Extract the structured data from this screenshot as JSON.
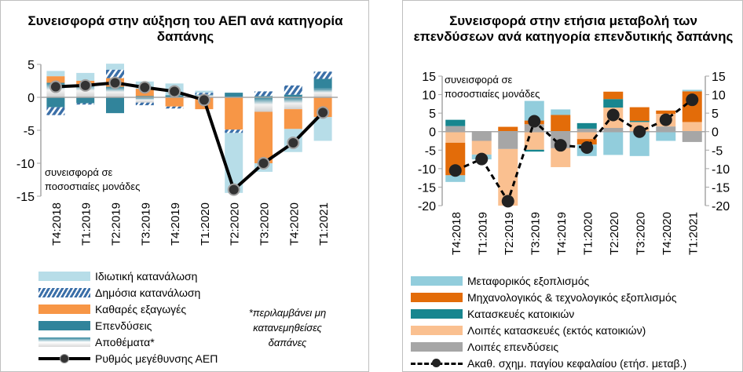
{
  "chart_data": [
    {
      "type": "bar",
      "stacked": true,
      "title": "Συνεισφορά στην αύξηση του ΑΕΠ ανά κατηγορία δαπάνης",
      "annotation": "συνεισφορά σε ποσοστιαίες μονάδες",
      "note": "*περιλαμβάνει μη κατανεμηθείσες δαπάνες",
      "ylim": [
        -15,
        5
      ],
      "yticks": [
        5,
        0,
        -5,
        -10,
        -15
      ],
      "categories": [
        "T4:2018",
        "T1:2019",
        "T2:2019",
        "T3:2019",
        "T4:2019",
        "T1:2020",
        "T2:2020",
        "T3:2020",
        "T4:2020",
        "T1:2021"
      ],
      "series": [
        {
          "name": "Ιδιωτική κατανάλωση",
          "color": "#b7dde8",
          "values": [
            0.8,
            1.2,
            0.9,
            1.1,
            1.8,
            0.3,
            -9.1,
            -1.3,
            -3.5,
            -3.6
          ]
        },
        {
          "name": "Δημόσια κατανάλωση",
          "color": "#3b6fa8",
          "pattern": "hatched",
          "values": [
            -1.2,
            -0.2,
            1.3,
            -0.4,
            -0.3,
            0.3,
            -0.5,
            0.7,
            1.4,
            1.1
          ]
        },
        {
          "name": "Καθαρές εξαγωγές",
          "color": "#f79646",
          "values": [
            1.0,
            0.5,
            1.3,
            1.1,
            -1.4,
            -1.8,
            -4.9,
            -7.8,
            -3.0,
            -3.0
          ]
        },
        {
          "name": "Επενδύσεις",
          "color": "#31849b",
          "values": [
            -1.5,
            -0.9,
            -2.4,
            0.2,
            0.3,
            0.0,
            0.7,
            0.2,
            0.4,
            1.4
          ]
        },
        {
          "name": "Αποθέματα*",
          "color": "#d9d9d9",
          "pattern": "gradient",
          "values": [
            2.2,
            2.0,
            1.6,
            -0.8,
            0.0,
            0.4,
            0.0,
            -2.2,
            -1.8,
            1.4
          ]
        }
      ],
      "line": {
        "name": "Ρυθμός μεγέθυνσης ΑΕΠ",
        "color": "#000000",
        "values": [
          1.6,
          1.8,
          2.2,
          1.5,
          0.9,
          -0.4,
          -14.0,
          -10.0,
          -6.9,
          -2.3
        ]
      }
    },
    {
      "type": "bar",
      "stacked": true,
      "title": "Συνεισφορά στην ετήσια μεταβολή των επενδύσεων ανά κατηγορία επενδυτικής δαπάνης",
      "annotation": "συνεισφορά σε ποσοστιαίες μονάδες",
      "ylim": [
        -20,
        15
      ],
      "yticks": [
        15,
        10,
        5,
        0,
        -5,
        -10,
        -15,
        -20
      ],
      "categories": [
        "T4:2018",
        "T1:2019",
        "T2:2019",
        "T3:2019",
        "T4:2019",
        "T1:2020",
        "T2:2020",
        "T3:2020",
        "T4:2020",
        "T1:2021"
      ],
      "series": [
        {
          "name": "Μεταφορικός εξοπλισμός",
          "color": "#92cddc",
          "values": [
            -1.8,
            -1.3,
            0,
            5.3,
            1.5,
            -3.1,
            -6.3,
            -6.6,
            -2.5,
            0.4
          ]
        },
        {
          "name": "Μηχανολογικός & τεχνολογικός εξοπλισμός",
          "color": "#e36c09",
          "values": [
            -8.8,
            0,
            1.3,
            1.0,
            4.5,
            -1.5,
            2.0,
            3.7,
            0.9,
            8.3
          ]
        },
        {
          "name": "Κατασκευές κατοικιών",
          "color": "#17868f",
          "values": [
            1.7,
            0,
            0,
            -0.5,
            0,
            1.5,
            2.3,
            0.3,
            0,
            0
          ]
        },
        {
          "name": "Λοιπές κατασκευές (εκτός κατοικιών)",
          "color": "#fac090",
          "values": [
            -3.0,
            -3.7,
            -15.3,
            -4.9,
            -5.1,
            -2.0,
            5.5,
            2.6,
            3.4,
            2.6
          ]
        },
        {
          "name": "Λοιπές επενδύσεις",
          "color": "#a6a6a6",
          "values": [
            1.5,
            -2.5,
            -4.7,
            2.0,
            -4.5,
            0.8,
            1.0,
            0,
            1.4,
            -2.8
          ]
        }
      ],
      "line": {
        "name": "Ακαθ. σχημ. παγίου κεφαλαίου (ετήσ. μεταβ.)",
        "color": "#000000",
        "dashed": true,
        "values": [
          -10.5,
          -7.4,
          -18.8,
          2.8,
          -3.7,
          -4.3,
          4.5,
          0.0,
          3.2,
          8.6
        ]
      }
    }
  ]
}
